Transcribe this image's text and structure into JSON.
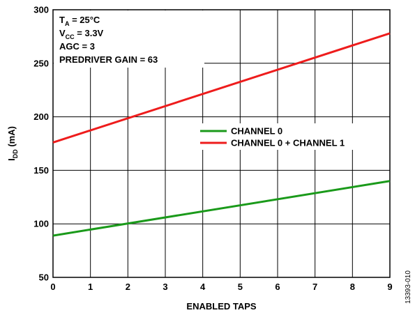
{
  "chart_data": {
    "type": "line",
    "xlabel": "ENABLED TAPS",
    "ylabel": {
      "main": "I",
      "sub": "DD",
      "unit": " (mA)"
    },
    "xlim": [
      0,
      9
    ],
    "ylim": [
      50,
      300
    ],
    "x_ticks": [
      0,
      1,
      2,
      3,
      4,
      5,
      6,
      7,
      8,
      9
    ],
    "y_ticks": [
      50,
      100,
      150,
      200,
      250,
      300
    ],
    "grid": true,
    "legend_position": "center-right",
    "series": [
      {
        "name": "CHANNEL 0",
        "color": "#1a9a1a",
        "x": [
          0,
          9
        ],
        "y": [
          89,
          140
        ]
      },
      {
        "name": "CHANNEL 0 + CHANNEL 1",
        "color": "#ee1c1c",
        "x": [
          0,
          9
        ],
        "y": [
          176,
          278
        ]
      }
    ],
    "conditions": [
      {
        "main": "T",
        "sub": "A",
        "rest": " = 25°C"
      },
      {
        "main": "V",
        "sub": "CC",
        "rest": " = 3.3V"
      },
      {
        "main": "AGC = 3",
        "sub": "",
        "rest": ""
      },
      {
        "main": "PREDRIVER GAIN = 63",
        "sub": "",
        "rest": ""
      }
    ],
    "figure_id": "13393-010"
  }
}
